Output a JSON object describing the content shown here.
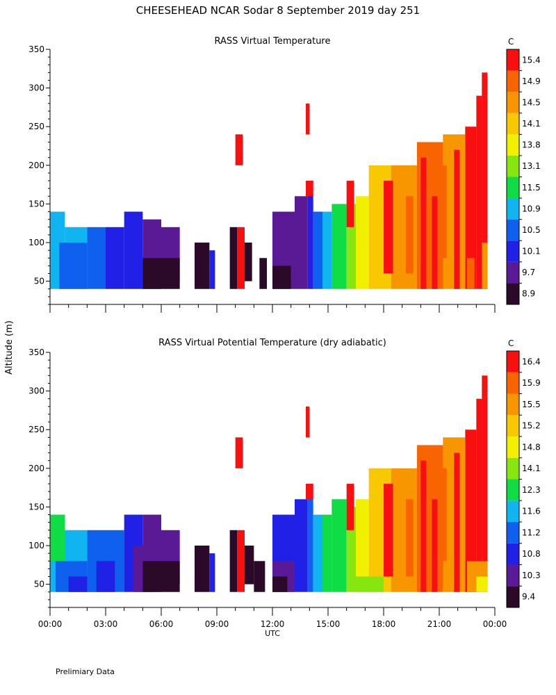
{
  "figure": {
    "title": "CHEESEHEAD   NCAR Sodar    8 September 2019   day 251",
    "ylabel": "Altitude (m)",
    "xlabel": "UTC",
    "footer": "Prelimiary Data"
  },
  "chart_data": [
    {
      "type": "heatmap",
      "title": "RASS Virtual Temperature",
      "units": "C",
      "x": {
        "label": "UTC",
        "range_hours": [
          0,
          24
        ],
        "ticks": [
          "00:00",
          "03:00",
          "06:00",
          "09:00",
          "12:00",
          "15:00",
          "18:00",
          "21:00",
          "00:00"
        ]
      },
      "y": {
        "range_m": [
          20,
          350
        ],
        "ticks": [
          50,
          100,
          150,
          200,
          250,
          300,
          350
        ]
      },
      "colorbar_labels": [
        "8.9",
        "9.7",
        "10.1",
        "10.5",
        "10.9",
        "11.5",
        "13.1",
        "13.8",
        "14.1",
        "14.5",
        "14.9",
        "15.4"
      ],
      "colorbar_colors": [
        "#2a0a28",
        "#5a1a96",
        "#2020e6",
        "#1060f0",
        "#10b4f0",
        "#10dc46",
        "#88e610",
        "#f0f000",
        "#f8c800",
        "#f89600",
        "#f86400",
        "#f81010"
      ],
      "regions": [
        {
          "t": [
            0.0,
            0.8
          ],
          "z": [
            40,
            140
          ],
          "level": 4
        },
        {
          "t": [
            0.8,
            2.0
          ],
          "z": [
            40,
            120
          ],
          "level": 4
        },
        {
          "t": [
            0.5,
            2.0
          ],
          "z": [
            40,
            100
          ],
          "level": 3
        },
        {
          "t": [
            2.0,
            3.0
          ],
          "z": [
            40,
            120
          ],
          "level": 3
        },
        {
          "t": [
            3.0,
            4.0
          ],
          "z": [
            40,
            120
          ],
          "level": 2
        },
        {
          "t": [
            4.0,
            5.0
          ],
          "z": [
            40,
            140
          ],
          "level": 2
        },
        {
          "t": [
            5.0,
            6.0
          ],
          "z": [
            40,
            130
          ],
          "level": 1
        },
        {
          "t": [
            6.0,
            7.0
          ],
          "z": [
            50,
            120
          ],
          "level": 1
        },
        {
          "t": [
            5.0,
            7.0
          ],
          "z": [
            40,
            80
          ],
          "level": 0
        },
        {
          "t": [
            7.8,
            8.6
          ],
          "z": [
            40,
            100
          ],
          "level": 0
        },
        {
          "t": [
            8.6,
            8.9
          ],
          "z": [
            40,
            90
          ],
          "level": 2
        },
        {
          "t": [
            9.7,
            10.1
          ],
          "z": [
            40,
            120
          ],
          "level": 0
        },
        {
          "t": [
            10.1,
            10.5
          ],
          "z": [
            40,
            120
          ],
          "level": 11
        },
        {
          "t": [
            10.5,
            10.9
          ],
          "z": [
            50,
            100
          ],
          "level": 0
        },
        {
          "t": [
            11.3,
            11.7
          ],
          "z": [
            40,
            80
          ],
          "level": 0
        },
        {
          "t": [
            10.0,
            10.4
          ],
          "z": [
            200,
            240
          ],
          "level": 11
        },
        {
          "t": [
            12.0,
            13.2
          ],
          "z": [
            40,
            140
          ],
          "level": 1
        },
        {
          "t": [
            13.2,
            13.9
          ],
          "z": [
            40,
            160
          ],
          "level": 1
        },
        {
          "t": [
            12.0,
            13.0
          ],
          "z": [
            40,
            70
          ],
          "level": 0
        },
        {
          "t": [
            13.9,
            14.2
          ],
          "z": [
            40,
            180
          ],
          "level": 2
        },
        {
          "t": [
            14.2,
            14.7
          ],
          "z": [
            40,
            140
          ],
          "level": 3
        },
        {
          "t": [
            14.7,
            15.2
          ],
          "z": [
            40,
            140
          ],
          "level": 4
        },
        {
          "t": [
            13.8,
            14.0
          ],
          "z": [
            240,
            280
          ],
          "level": 11
        },
        {
          "t": [
            13.8,
            14.2
          ],
          "z": [
            160,
            180
          ],
          "level": 11
        },
        {
          "t": [
            15.2,
            16.0
          ],
          "z": [
            40,
            150
          ],
          "level": 5
        },
        {
          "t": [
            16.0,
            16.5
          ],
          "z": [
            40,
            150
          ],
          "level": 6
        },
        {
          "t": [
            16.0,
            16.4
          ],
          "z": [
            120,
            180
          ],
          "level": 11
        },
        {
          "t": [
            16.5,
            17.2
          ],
          "z": [
            40,
            160
          ],
          "level": 7
        },
        {
          "t": [
            17.2,
            18.4
          ],
          "z": [
            40,
            200
          ],
          "level": 8
        },
        {
          "t": [
            18.4,
            19.8
          ],
          "z": [
            40,
            200
          ],
          "level": 9
        },
        {
          "t": [
            19.8,
            21.2
          ],
          "z": [
            40,
            230
          ],
          "level": 10
        },
        {
          "t": [
            21.2,
            22.4
          ],
          "z": [
            40,
            240
          ],
          "level": 9
        },
        {
          "t": [
            22.4,
            23.0
          ],
          "z": [
            40,
            250
          ],
          "level": 11
        },
        {
          "t": [
            23.0,
            23.3
          ],
          "z": [
            40,
            290
          ],
          "level": 11
        },
        {
          "t": [
            23.3,
            23.6
          ],
          "z": [
            40,
            320
          ],
          "level": 11
        },
        {
          "t": [
            18.0,
            18.5
          ],
          "z": [
            60,
            180
          ],
          "level": 11
        },
        {
          "t": [
            19.2,
            19.6
          ],
          "z": [
            60,
            160
          ],
          "level": 10
        },
        {
          "t": [
            20.0,
            20.3
          ],
          "z": [
            40,
            210
          ],
          "level": 11
        },
        {
          "t": [
            20.6,
            20.9
          ],
          "z": [
            40,
            160
          ],
          "level": 11
        },
        {
          "t": [
            21.0,
            21.4
          ],
          "z": [
            80,
            200
          ],
          "level": 10
        },
        {
          "t": [
            21.8,
            22.1
          ],
          "z": [
            40,
            220
          ],
          "level": 11
        },
        {
          "t": [
            22.5,
            22.9
          ],
          "z": [
            40,
            80
          ],
          "level": 10
        },
        {
          "t": [
            23.3,
            23.6
          ],
          "z": [
            40,
            100
          ],
          "level": 9
        }
      ]
    },
    {
      "type": "heatmap",
      "title": "RASS Virtual Potential Temperature (dry adiabatic)",
      "units": "C",
      "x": {
        "label": "UTC",
        "range_hours": [
          0,
          24
        ],
        "ticks": [
          "00:00",
          "03:00",
          "06:00",
          "09:00",
          "12:00",
          "15:00",
          "18:00",
          "21:00",
          "00:00"
        ]
      },
      "y": {
        "range_m": [
          20,
          350
        ],
        "ticks": [
          50,
          100,
          150,
          200,
          250,
          300,
          350
        ]
      },
      "colorbar_labels": [
        "9.4",
        "10.3",
        "10.8",
        "11.2",
        "11.6",
        "12.3",
        "14.1",
        "14.8",
        "15.2",
        "15.5",
        "15.9",
        "16.4"
      ],
      "colorbar_colors": [
        "#2a0a28",
        "#5a1a96",
        "#2020e6",
        "#1060f0",
        "#10b4f0",
        "#10dc46",
        "#88e610",
        "#f0f000",
        "#f8c800",
        "#f89600",
        "#f86400",
        "#f81010"
      ],
      "regions": [
        {
          "t": [
            0.0,
            0.8
          ],
          "z": [
            40,
            140
          ],
          "level": 4
        },
        {
          "t": [
            0.0,
            0.8
          ],
          "z": [
            80,
            140
          ],
          "level": 5
        },
        {
          "t": [
            0.8,
            2.0
          ],
          "z": [
            40,
            120
          ],
          "level": 4
        },
        {
          "t": [
            0.3,
            2.0
          ],
          "z": [
            40,
            80
          ],
          "level": 3
        },
        {
          "t": [
            1.0,
            2.5
          ],
          "z": [
            40,
            60
          ],
          "level": 2
        },
        {
          "t": [
            2.0,
            3.0
          ],
          "z": [
            40,
            120
          ],
          "level": 3
        },
        {
          "t": [
            3.0,
            4.0
          ],
          "z": [
            40,
            120
          ],
          "level": 3
        },
        {
          "t": [
            2.5,
            3.5
          ],
          "z": [
            40,
            80
          ],
          "level": 2
        },
        {
          "t": [
            4.0,
            5.0
          ],
          "z": [
            40,
            140
          ],
          "level": 2
        },
        {
          "t": [
            4.5,
            5.5
          ],
          "z": [
            40,
            100
          ],
          "level": 1
        },
        {
          "t": [
            5.0,
            6.0
          ],
          "z": [
            40,
            140
          ],
          "level": 1
        },
        {
          "t": [
            6.0,
            7.0
          ],
          "z": [
            50,
            120
          ],
          "level": 1
        },
        {
          "t": [
            5.0,
            7.0
          ],
          "z": [
            40,
            80
          ],
          "level": 0
        },
        {
          "t": [
            7.8,
            8.6
          ],
          "z": [
            40,
            100
          ],
          "level": 0
        },
        {
          "t": [
            8.6,
            8.9
          ],
          "z": [
            40,
            90
          ],
          "level": 2
        },
        {
          "t": [
            9.7,
            10.1
          ],
          "z": [
            40,
            120
          ],
          "level": 0
        },
        {
          "t": [
            10.1,
            10.5
          ],
          "z": [
            40,
            120
          ],
          "level": 11
        },
        {
          "t": [
            10.5,
            11.0
          ],
          "z": [
            50,
            100
          ],
          "level": 0
        },
        {
          "t": [
            11.0,
            11.6
          ],
          "z": [
            40,
            80
          ],
          "level": 0
        },
        {
          "t": [
            10.0,
            10.4
          ],
          "z": [
            200,
            240
          ],
          "level": 11
        },
        {
          "t": [
            12.0,
            13.2
          ],
          "z": [
            40,
            140
          ],
          "level": 2
        },
        {
          "t": [
            13.2,
            13.9
          ],
          "z": [
            40,
            160
          ],
          "level": 2
        },
        {
          "t": [
            12.0,
            13.2
          ],
          "z": [
            40,
            80
          ],
          "level": 1
        },
        {
          "t": [
            12.0,
            12.8
          ],
          "z": [
            40,
            60
          ],
          "level": 0
        },
        {
          "t": [
            13.9,
            14.2
          ],
          "z": [
            40,
            180
          ],
          "level": 3
        },
        {
          "t": [
            14.2,
            14.7
          ],
          "z": [
            40,
            140
          ],
          "level": 4
        },
        {
          "t": [
            14.7,
            15.2
          ],
          "z": [
            40,
            140
          ],
          "level": 5
        },
        {
          "t": [
            13.8,
            14.0
          ],
          "z": [
            240,
            280
          ],
          "level": 11
        },
        {
          "t": [
            13.8,
            14.2
          ],
          "z": [
            160,
            180
          ],
          "level": 11
        },
        {
          "t": [
            15.2,
            16.0
          ],
          "z": [
            40,
            160
          ],
          "level": 5
        },
        {
          "t": [
            16.0,
            16.5
          ],
          "z": [
            40,
            150
          ],
          "level": 6
        },
        {
          "t": [
            16.0,
            16.4
          ],
          "z": [
            120,
            180
          ],
          "level": 11
        },
        {
          "t": [
            16.5,
            17.2
          ],
          "z": [
            40,
            160
          ],
          "level": 7
        },
        {
          "t": [
            17.2,
            18.4
          ],
          "z": [
            40,
            200
          ],
          "level": 8
        },
        {
          "t": [
            18.4,
            19.8
          ],
          "z": [
            40,
            200
          ],
          "level": 9
        },
        {
          "t": [
            19.8,
            21.2
          ],
          "z": [
            40,
            230
          ],
          "level": 10
        },
        {
          "t": [
            21.2,
            22.4
          ],
          "z": [
            40,
            240
          ],
          "level": 9
        },
        {
          "t": [
            22.4,
            23.0
          ],
          "z": [
            40,
            250
          ],
          "level": 11
        },
        {
          "t": [
            23.0,
            23.3
          ],
          "z": [
            40,
            290
          ],
          "level": 11
        },
        {
          "t": [
            23.3,
            23.6
          ],
          "z": [
            40,
            320
          ],
          "level": 11
        },
        {
          "t": [
            18.0,
            18.5
          ],
          "z": [
            60,
            180
          ],
          "level": 11
        },
        {
          "t": [
            19.2,
            19.6
          ],
          "z": [
            60,
            160
          ],
          "level": 10
        },
        {
          "t": [
            20.0,
            20.3
          ],
          "z": [
            40,
            210
          ],
          "level": 11
        },
        {
          "t": [
            20.6,
            20.9
          ],
          "z": [
            40,
            160
          ],
          "level": 11
        },
        {
          "t": [
            21.0,
            21.4
          ],
          "z": [
            80,
            200
          ],
          "level": 10
        },
        {
          "t": [
            21.8,
            22.1
          ],
          "z": [
            40,
            220
          ],
          "level": 11
        },
        {
          "t": [
            16.5,
            18.0
          ],
          "z": [
            40,
            60
          ],
          "level": 6
        },
        {
          "t": [
            22.5,
            23.6
          ],
          "z": [
            40,
            80
          ],
          "level": 9
        },
        {
          "t": [
            23.0,
            23.6
          ],
          "z": [
            40,
            60
          ],
          "level": 7
        }
      ]
    }
  ]
}
